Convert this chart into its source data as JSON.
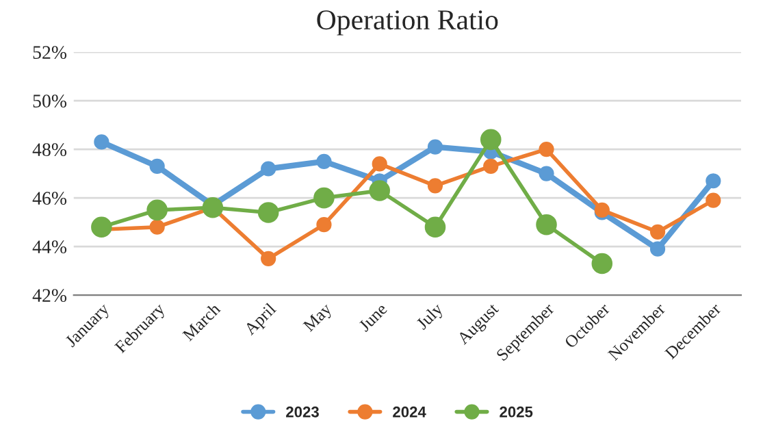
{
  "chart_data": {
    "type": "line",
    "title": "Operation Ratio",
    "categories": [
      "January",
      "February",
      "March",
      "April",
      "May",
      "June",
      "July",
      "August",
      "September",
      "October",
      "November",
      "December"
    ],
    "series": [
      {
        "name": "2023",
        "color": "#5b9bd5",
        "values": [
          48.3,
          47.3,
          45.7,
          47.2,
          47.5,
          46.7,
          48.1,
          47.9,
          47.0,
          45.4,
          43.9,
          46.7
        ]
      },
      {
        "name": "2024",
        "color": "#ed7d31",
        "values": [
          44.7,
          44.8,
          45.6,
          43.5,
          44.9,
          47.4,
          46.5,
          47.3,
          48.0,
          45.5,
          44.6,
          45.9
        ]
      },
      {
        "name": "2025",
        "color": "#70ad47",
        "values": [
          44.8,
          45.5,
          45.6,
          45.4,
          46.0,
          46.3,
          44.8,
          48.4,
          44.9,
          43.3,
          null,
          null
        ]
      }
    ],
    "ylim": [
      42,
      52
    ],
    "yticks": [
      {
        "value": 42,
        "label": "42%"
      },
      {
        "value": 44,
        "label": "44%"
      },
      {
        "value": 46,
        "label": "46%"
      },
      {
        "value": 48,
        "label": "48%"
      },
      {
        "value": 50,
        "label": "50%"
      },
      {
        "value": 52,
        "label": "52%"
      }
    ],
    "grid": "y",
    "legend": "bottom",
    "marker": "circle",
    "line_style": "solid"
  }
}
